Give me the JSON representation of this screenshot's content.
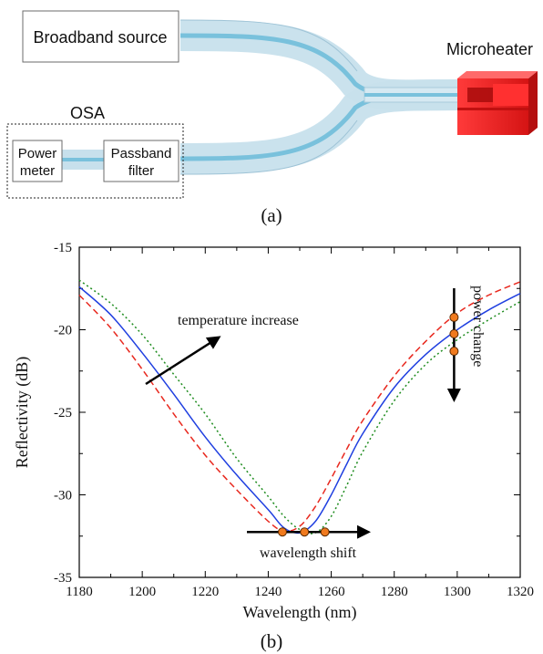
{
  "diagram": {
    "broadband_source": "Broadband source",
    "microheater": "Microheater",
    "osa": "OSA",
    "power_meter_line1": "Power",
    "power_meter_line2": "meter",
    "passband_line1": "Passband",
    "passband_line2": "filter",
    "panel_label": "(a)",
    "colors": {
      "fiber_outer": "#c7e0ec",
      "fiber_core": "#79c1dc",
      "heater": "#ee1c1c",
      "heater_dark": "#b40f0f"
    }
  },
  "chart_data": {
    "type": "line",
    "panel_label": "(b)",
    "xlabel": "Wavelength (nm)",
    "ylabel": "Reflectivity (dB)",
    "xlim": [
      1180,
      1320
    ],
    "ylim": [
      -35,
      -15
    ],
    "xticks": [
      "1180",
      "1200",
      "1220",
      "1240",
      "1260",
      "1280",
      "1300",
      "1320"
    ],
    "yticks": [
      "-15",
      "-20",
      "-25",
      "-30",
      "-35"
    ],
    "x": [
      1180,
      1190,
      1200,
      1210,
      1220,
      1230,
      1240,
      1245,
      1250,
      1255,
      1260,
      1265,
      1270,
      1280,
      1290,
      1300,
      1310,
      1320
    ],
    "series": [
      {
        "color": "#e8281e",
        "dash": "dashed",
        "values": [
          -17.9,
          -19.9,
          -22.4,
          -25.1,
          -27.6,
          -29.7,
          -31.6,
          -32.2,
          -31.9,
          -30.7,
          -29.0,
          -27.2,
          -25.5,
          -22.8,
          -20.7,
          -19.0,
          -17.9,
          -17.1
        ]
      },
      {
        "color": "#1f3fe0",
        "dash": "solid",
        "values": [
          -17.4,
          -19.1,
          -21.4,
          -23.9,
          -26.5,
          -28.8,
          -30.9,
          -32.0,
          -32.3,
          -31.6,
          -30.0,
          -28.1,
          -26.3,
          -23.5,
          -21.5,
          -20.0,
          -18.8,
          -17.8
        ]
      },
      {
        "color": "#1e8c1e",
        "dash": "dotted",
        "values": [
          -17.0,
          -18.4,
          -20.3,
          -22.7,
          -25.1,
          -27.8,
          -30.1,
          -31.3,
          -32.1,
          -32.3,
          -31.3,
          -29.4,
          -27.4,
          -24.3,
          -22.1,
          -20.6,
          -19.4,
          -18.3
        ]
      }
    ],
    "markers_shift": [
      {
        "x": 1244.5,
        "y": -32.25
      },
      {
        "x": 1251.5,
        "y": -32.25
      },
      {
        "x": 1258,
        "y": -32.25
      }
    ],
    "markers_power": [
      {
        "x": 1299,
        "y": -19.25
      },
      {
        "x": 1299,
        "y": -20.25
      },
      {
        "x": 1299,
        "y": -21.3
      }
    ],
    "annotations": {
      "temperature": "temperature increase",
      "power": "power change",
      "wavelength": "wavelength shift"
    },
    "marker_color": "#f07a1e"
  }
}
